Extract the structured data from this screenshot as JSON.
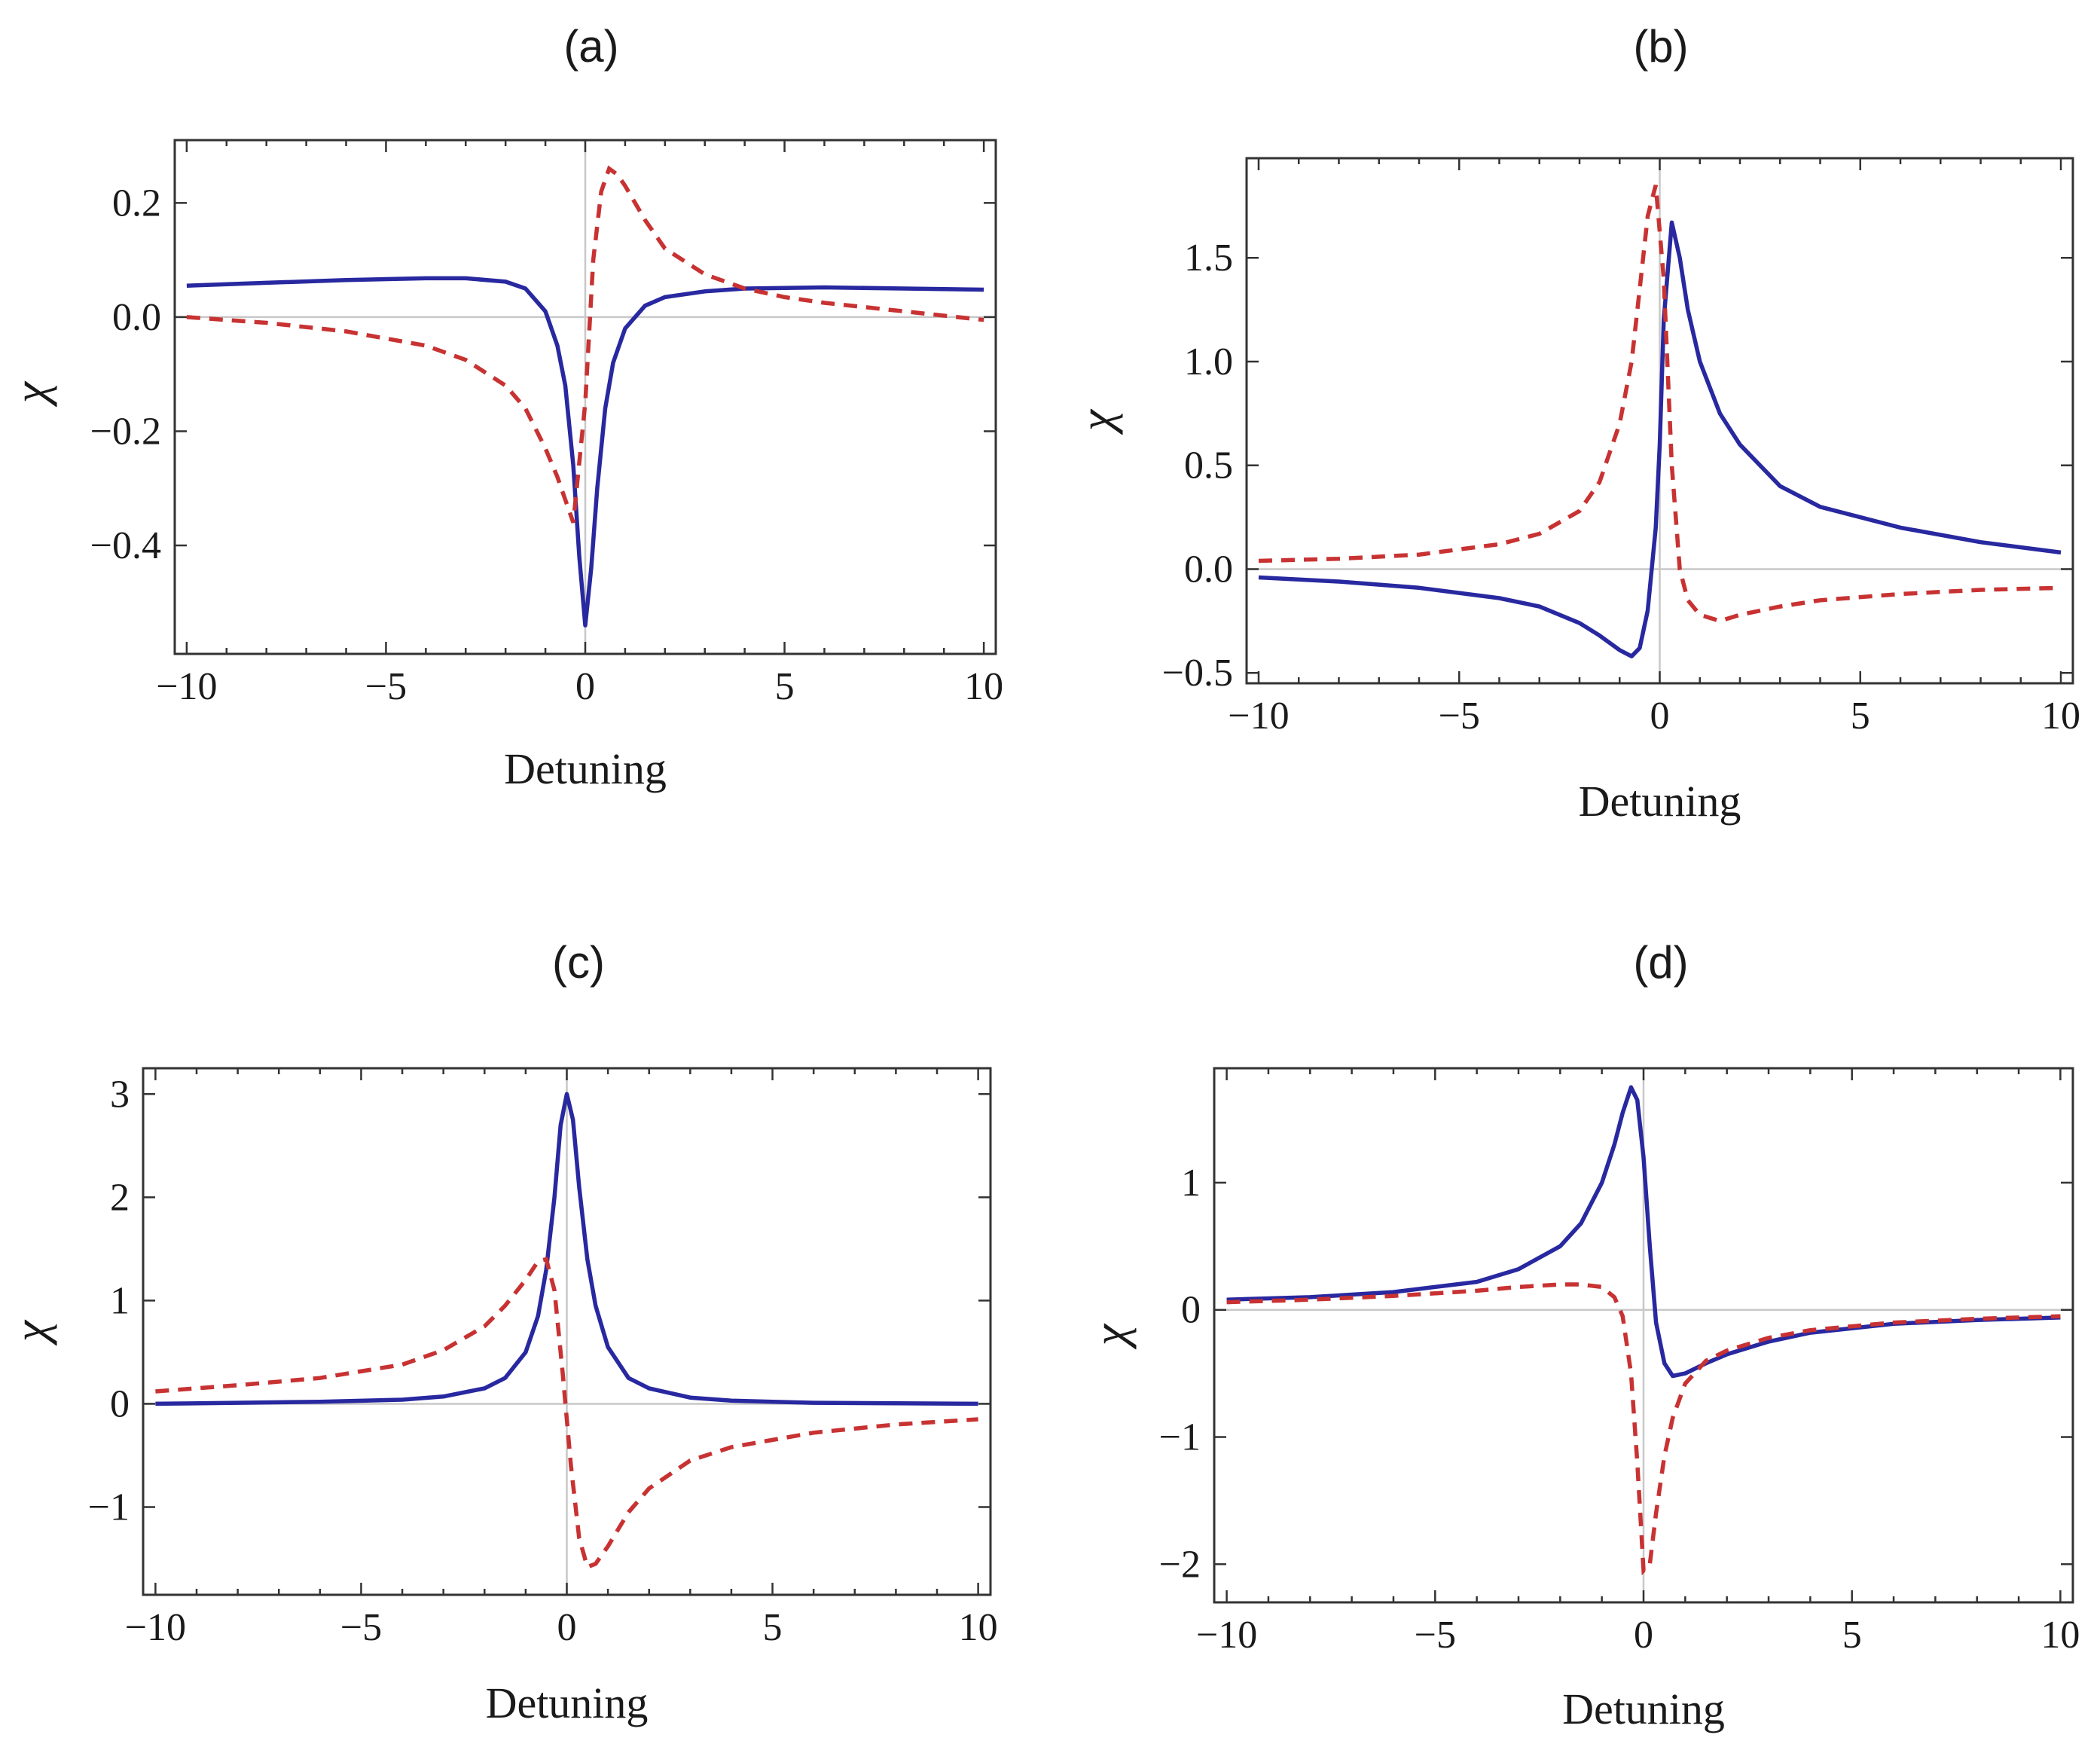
{
  "colors": {
    "solid": "#2828a0",
    "dashed": "#c83232"
  },
  "chart_data": [
    {
      "type": "line",
      "panel_label": "(a)",
      "xlabel": "Detuning",
      "ylabel": "χ",
      "xlim": [
        -10.3,
        10.3
      ],
      "ylim": [
        -0.59,
        0.31
      ],
      "xticks": [
        -10,
        -5,
        0,
        5,
        10
      ],
      "xtick_labels": [
        "−10",
        "−5",
        "0",
        "5",
        "10"
      ],
      "yticks": [
        0.2,
        0.0,
        -0.2,
        -0.4
      ],
      "ytick_labels": [
        "0.2",
        "0.0",
        "−0.2",
        "−0.4"
      ],
      "series": [
        {
          "name": "solid",
          "style": "solid",
          "x": [
            -10,
            -8,
            -6,
            -4,
            -3,
            -2,
            -1.5,
            -1,
            -0.7,
            -0.5,
            -0.3,
            -0.15,
            0,
            0.15,
            0.3,
            0.5,
            0.7,
            1,
            1.5,
            2,
            3,
            4,
            6,
            8,
            10
          ],
          "y": [
            0.055,
            0.06,
            0.065,
            0.068,
            0.068,
            0.062,
            0.05,
            0.01,
            -0.05,
            -0.12,
            -0.26,
            -0.42,
            -0.54,
            -0.44,
            -0.3,
            -0.16,
            -0.08,
            -0.02,
            0.02,
            0.035,
            0.045,
            0.05,
            0.052,
            0.05,
            0.048
          ]
        },
        {
          "name": "dashed",
          "style": "dashed",
          "x": [
            -10,
            -8,
            -6,
            -4,
            -3,
            -2,
            -1.5,
            -1,
            -0.7,
            -0.5,
            -0.3,
            0,
            0.2,
            0.4,
            0.6,
            0.8,
            1,
            1.5,
            2,
            3,
            4,
            5,
            6,
            8,
            10
          ],
          "y": [
            0.0,
            -0.01,
            -0.025,
            -0.05,
            -0.075,
            -0.12,
            -0.16,
            -0.23,
            -0.28,
            -0.32,
            -0.36,
            -0.15,
            0.1,
            0.22,
            0.26,
            0.25,
            0.23,
            0.17,
            0.12,
            0.075,
            0.05,
            0.035,
            0.025,
            0.01,
            -0.005
          ]
        }
      ]
    },
    {
      "type": "line",
      "panel_label": "(b)",
      "xlabel": "Detuning",
      "ylabel": "χ",
      "xlim": [
        -10.3,
        10.3
      ],
      "ylim": [
        -0.55,
        1.98
      ],
      "xticks": [
        -10,
        -5,
        0,
        5,
        10
      ],
      "xtick_labels": [
        "−10",
        "−5",
        "0",
        "5",
        "10"
      ],
      "yticks": [
        1.5,
        1.0,
        0.5,
        0.0,
        -0.5
      ],
      "ytick_labels": [
        "1.5",
        "1.0",
        "0.5",
        "0.0",
        "−0.5"
      ],
      "series": [
        {
          "name": "solid",
          "style": "solid",
          "x": [
            -10,
            -8,
            -6,
            -4,
            -3,
            -2,
            -1.5,
            -1,
            -0.7,
            -0.5,
            -0.3,
            -0.1,
            0,
            0.1,
            0.3,
            0.5,
            0.7,
            1,
            1.5,
            2,
            3,
            4,
            6,
            8,
            10
          ],
          "y": [
            -0.04,
            -0.06,
            -0.09,
            -0.14,
            -0.18,
            -0.26,
            -0.32,
            -0.39,
            -0.42,
            -0.38,
            -0.2,
            0.2,
            0.6,
            1.2,
            1.67,
            1.5,
            1.25,
            1.0,
            0.75,
            0.6,
            0.4,
            0.3,
            0.2,
            0.13,
            0.08
          ]
        },
        {
          "name": "dashed",
          "style": "dashed",
          "x": [
            -10,
            -8,
            -6,
            -4,
            -3,
            -2,
            -1.5,
            -1,
            -0.7,
            -0.5,
            -0.3,
            -0.1,
            0.1,
            0.3,
            0.5,
            0.7,
            1,
            1.5,
            2,
            3,
            4,
            6,
            8,
            10
          ],
          "y": [
            0.04,
            0.05,
            0.07,
            0.12,
            0.17,
            0.28,
            0.42,
            0.7,
            1.0,
            1.35,
            1.7,
            1.85,
            1.4,
            0.5,
            0.0,
            -0.15,
            -0.22,
            -0.25,
            -0.22,
            -0.18,
            -0.15,
            -0.12,
            -0.1,
            -0.09
          ]
        }
      ]
    },
    {
      "type": "line",
      "panel_label": "(c)",
      "xlabel": "Detuning",
      "ylabel": "χ",
      "xlim": [
        -10.3,
        10.3
      ],
      "ylim": [
        -1.85,
        3.25
      ],
      "xticks": [
        -10,
        -5,
        0,
        5,
        10
      ],
      "xtick_labels": [
        "−10",
        "−5",
        "0",
        "5",
        "10"
      ],
      "yticks": [
        3,
        2,
        1,
        0,
        -1
      ],
      "ytick_labels": [
        "3",
        "2",
        "1",
        "0",
        "−1"
      ],
      "series": [
        {
          "name": "solid",
          "style": "solid",
          "x": [
            -10,
            -8,
            -6,
            -4,
            -3,
            -2,
            -1.5,
            -1,
            -0.7,
            -0.5,
            -0.3,
            -0.15,
            0,
            0.15,
            0.3,
            0.5,
            0.7,
            1,
            1.5,
            2,
            3,
            4,
            6,
            8,
            10
          ],
          "y": [
            0.0,
            0.01,
            0.02,
            0.04,
            0.07,
            0.15,
            0.25,
            0.5,
            0.85,
            1.3,
            2.0,
            2.7,
            3.0,
            2.75,
            2.1,
            1.4,
            0.95,
            0.55,
            0.25,
            0.15,
            0.06,
            0.03,
            0.01,
            0.005,
            0.0
          ]
        },
        {
          "name": "dashed",
          "style": "dashed",
          "x": [
            -10,
            -8,
            -6,
            -4,
            -3,
            -2,
            -1.5,
            -1,
            -0.7,
            -0.5,
            -0.3,
            -0.1,
            0.1,
            0.3,
            0.5,
            0.7,
            1,
            1.5,
            2,
            3,
            4,
            6,
            8,
            10
          ],
          "y": [
            0.12,
            0.18,
            0.25,
            0.38,
            0.52,
            0.75,
            0.95,
            1.2,
            1.38,
            1.4,
            1.1,
            0.3,
            -0.6,
            -1.3,
            -1.58,
            -1.55,
            -1.38,
            -1.05,
            -0.82,
            -0.55,
            -0.42,
            -0.28,
            -0.2,
            -0.15
          ]
        }
      ]
    },
    {
      "type": "line",
      "panel_label": "(d)",
      "xlabel": "Detuning",
      "ylabel": "χ",
      "xlim": [
        -10.3,
        10.3
      ],
      "ylim": [
        -2.3,
        1.9
      ],
      "xticks": [
        -10,
        -5,
        0,
        5,
        10
      ],
      "xtick_labels": [
        "−10",
        "−5",
        "0",
        "5",
        "10"
      ],
      "yticks": [
        1,
        0,
        -1,
        -2
      ],
      "ytick_labels": [
        "1",
        "0",
        "−1",
        "−2"
      ],
      "series": [
        {
          "name": "solid",
          "style": "solid",
          "x": [
            -10,
            -8,
            -6,
            -4,
            -3,
            -2,
            -1.5,
            -1,
            -0.7,
            -0.5,
            -0.3,
            -0.15,
            0,
            0.15,
            0.3,
            0.5,
            0.7,
            1,
            1.5,
            2,
            3,
            4,
            6,
            8,
            10
          ],
          "y": [
            0.08,
            0.1,
            0.14,
            0.22,
            0.32,
            0.5,
            0.68,
            1.0,
            1.3,
            1.55,
            1.75,
            1.65,
            1.2,
            0.5,
            -0.1,
            -0.42,
            -0.52,
            -0.5,
            -0.42,
            -0.35,
            -0.25,
            -0.18,
            -0.11,
            -0.08,
            -0.06
          ]
        },
        {
          "name": "dashed",
          "style": "dashed",
          "x": [
            -10,
            -8,
            -6,
            -4,
            -3,
            -2,
            -1.5,
            -1,
            -0.7,
            -0.5,
            -0.3,
            -0.15,
            0,
            0.15,
            0.3,
            0.5,
            0.7,
            1,
            1.5,
            2,
            3,
            4,
            6,
            8,
            10
          ],
          "y": [
            0.06,
            0.08,
            0.11,
            0.15,
            0.18,
            0.2,
            0.2,
            0.18,
            0.1,
            -0.05,
            -0.5,
            -1.2,
            -2.05,
            -2.0,
            -1.6,
            -1.15,
            -0.85,
            -0.58,
            -0.4,
            -0.32,
            -0.22,
            -0.16,
            -0.1,
            -0.07,
            -0.05
          ]
        }
      ]
    }
  ]
}
